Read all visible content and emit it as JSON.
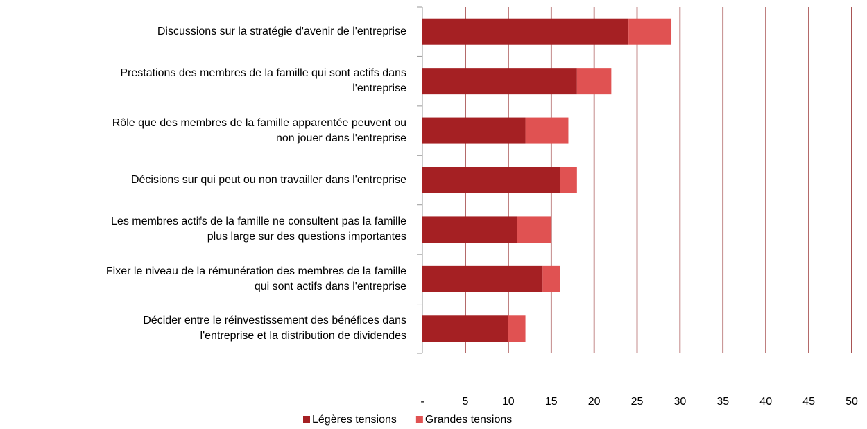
{
  "chart_data": {
    "type": "bar",
    "orientation": "horizontal",
    "stacked": true,
    "categories": [
      "Discussions sur la stratégie d'avenir de l'entreprise",
      "Prestations des membres de la famille qui sont actifs dans\nl'entreprise",
      "Rôle que des membres de la famille apparentée peuvent ou\nnon jouer dans l'entreprise",
      "Décisions sur qui peut ou non travailler dans l'entreprise",
      "Les membres actifs de la famille ne consultent pas la famille\nplus large sur des questions importantes",
      "Fixer le niveau de la rémunération des membres de la famille\nqui sont actifs dans l'entreprise",
      "Décider entre le réinvestissement des bénéfices dans\nl'entreprise et la distribution de dividendes"
    ],
    "series": [
      {
        "name": "Légères tensions",
        "color": "#a52023",
        "values": [
          24,
          18,
          12,
          16,
          11,
          14,
          10
        ]
      },
      {
        "name": "Grandes tensions",
        "color": "#e05252",
        "values": [
          5,
          4,
          5,
          2,
          4,
          2,
          2
        ]
      }
    ],
    "xlim": [
      0,
      50
    ],
    "xticks": [
      {
        "value": 0,
        "label": "-"
      },
      5,
      10,
      15,
      20,
      25,
      30,
      35,
      40,
      45,
      50
    ],
    "grid": true,
    "grid_color": "#8b1a1a",
    "legend": "bottom"
  }
}
